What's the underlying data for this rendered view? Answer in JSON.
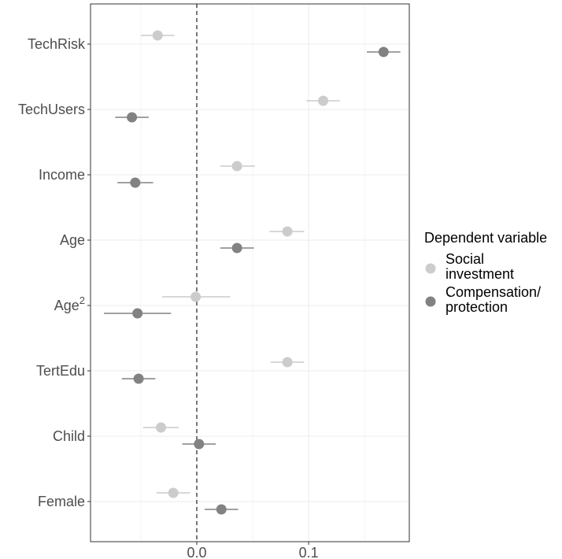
{
  "chart_data": {
    "type": "scatter",
    "title": "",
    "xlabel": "",
    "ylabel": "",
    "xlim": [
      -0.095,
      0.19
    ],
    "x_ticks": [
      0.0,
      0.1
    ],
    "x_tick_labels": [
      "0.0",
      "0.1"
    ],
    "reference_line_x": 0,
    "grid": true,
    "categories": [
      "TechRisk",
      "TechUsers",
      "Income",
      "Age",
      "Age²",
      "TertEdu",
      "Child",
      "Female"
    ],
    "category_labels": [
      {
        "base": "TechRisk",
        "sup": ""
      },
      {
        "base": "TechUsers",
        "sup": ""
      },
      {
        "base": "Income",
        "sup": ""
      },
      {
        "base": "Age",
        "sup": ""
      },
      {
        "base": "Age",
        "sup": "2"
      },
      {
        "base": "TertEdu",
        "sup": ""
      },
      {
        "base": "Child",
        "sup": ""
      },
      {
        "base": "Female",
        "sup": ""
      }
    ],
    "legend": {
      "title": "Dependent variable",
      "placement": "right",
      "entries": [
        {
          "lines": [
            "Social",
            "investment"
          ]
        },
        {
          "lines": [
            "Compensation/",
            "protection"
          ]
        }
      ]
    },
    "series": [
      {
        "name": "Social investment",
        "color": "#cccccc",
        "estimates": [
          -0.035,
          0.113,
          0.036,
          0.081,
          -0.001,
          0.081,
          -0.032,
          -0.021
        ],
        "ci_low": [
          -0.05,
          0.098,
          0.021,
          0.065,
          -0.031,
          0.066,
          -0.048,
          -0.036
        ],
        "ci_high": [
          -0.02,
          0.128,
          0.052,
          0.096,
          0.03,
          0.096,
          -0.016,
          -0.006
        ]
      },
      {
        "name": "Compensation/protection",
        "color": "#828282",
        "estimates": [
          0.167,
          -0.058,
          -0.055,
          0.036,
          -0.053,
          -0.052,
          0.002,
          0.022
        ],
        "ci_low": [
          0.152,
          -0.073,
          -0.071,
          0.021,
          -0.083,
          -0.067,
          -0.013,
          0.007
        ],
        "ci_high": [
          0.182,
          -0.043,
          -0.039,
          0.051,
          -0.023,
          -0.037,
          0.017,
          0.037
        ]
      }
    ]
  }
}
